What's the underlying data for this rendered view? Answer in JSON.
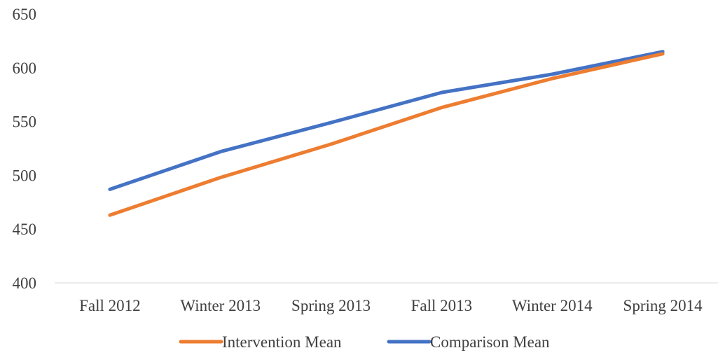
{
  "chart_data": {
    "type": "line",
    "title": "",
    "xlabel": "",
    "ylabel": "",
    "categories": [
      "Fall 2012",
      "Winter 2013",
      "Spring 2013",
      "Fall 2013",
      "Winter 2014",
      "Spring 2014"
    ],
    "ylim": [
      400,
      650
    ],
    "yticks": [
      400,
      450,
      500,
      550,
      600,
      650
    ],
    "grid": false,
    "legend_position": "bottom",
    "series": [
      {
        "name": "Intervention Mean",
        "color": "#ED7D31",
        "values": [
          463,
          498,
          529,
          563,
          590,
          613
        ]
      },
      {
        "name": "Comparison Mean",
        "color": "#4472C4",
        "values": [
          487,
          522,
          549,
          577,
          594,
          615
        ]
      }
    ]
  }
}
